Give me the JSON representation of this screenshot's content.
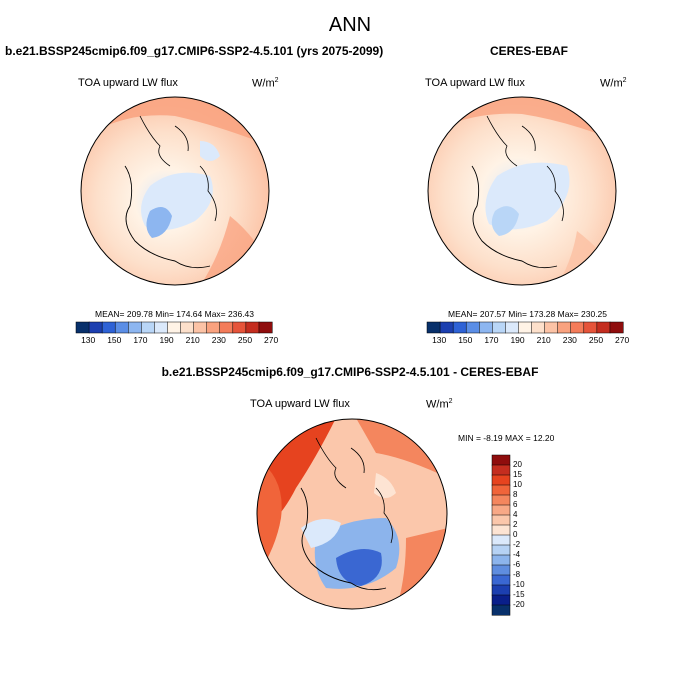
{
  "title": "ANN",
  "units_base": "W/m",
  "units_exp": "2",
  "panels": [
    {
      "id": "model",
      "case": "b.e21.BSSP245cmip6.f09_g17.CMIP6-SSP2-4.5.101 (yrs 2075-2099)",
      "variable": "TOA upward LW flux",
      "stats": "MEAN= 209.78  Min= 174.64  Max= 236.43",
      "stats_mean": 209.78,
      "stats_min": 174.64,
      "stats_max": 236.43
    },
    {
      "id": "obs",
      "case": "CERES-EBAF",
      "variable": "TOA upward LW flux",
      "stats": "MEAN= 207.57  Min= 173.28  Max= 230.25",
      "stats_mean": 207.57,
      "stats_min": 173.28,
      "stats_max": 230.25
    }
  ],
  "diff_panel": {
    "case": "b.e21.BSSP245cmip6.f09_g17.CMIP6-SSP2-4.5.101 - CERES-EBAF",
    "variable": "TOA upward LW flux",
    "stats": "MIN =  -8.19 MAX =  12.20",
    "stats_min": -8.19,
    "stats_max": 12.2
  },
  "field_colorbar": {
    "ticks": [
      "130",
      "150",
      "170",
      "190",
      "210",
      "230",
      "250",
      "270"
    ],
    "colors": [
      "#08306b",
      "#1c3fb0",
      "#2e62d6",
      "#5b8ee6",
      "#8db6f0",
      "#b9d6f7",
      "#dbe9fb",
      "#fff3e6",
      "#fde0cb",
      "#fcc3a6",
      "#f9a27f",
      "#f47c5a",
      "#e6543a",
      "#c42d1f",
      "#8f0d0d"
    ]
  },
  "diff_colorbar": {
    "ticks": [
      "20",
      "15",
      "10",
      "8",
      "6",
      "4",
      "2",
      "0",
      "-2",
      "-4",
      "-6",
      "-8",
      "-10",
      "-15",
      "-20"
    ],
    "colors": [
      "#8f0d0d",
      "#c42d1f",
      "#e6431f",
      "#f0643a",
      "#f4865e",
      "#f8a886",
      "#fbc7ab",
      "#fde4d3",
      "#dbe9fb",
      "#b6d2f4",
      "#8cb4ec",
      "#5f8ddf",
      "#3a67d2",
      "#1c3fb0",
      "#0a1f8a",
      "#08306b"
    ]
  }
}
